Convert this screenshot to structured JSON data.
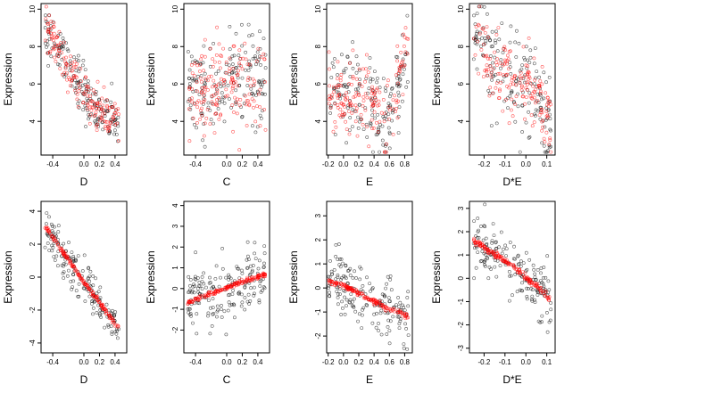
{
  "colors": {
    "black_points": "#000000",
    "red_points": "#ff0000"
  },
  "chart_data": [
    {
      "type": "scatter",
      "xlabel": "D",
      "ylabel": "Expression",
      "xlim": [
        -0.55,
        0.55
      ],
      "ylim": [
        2.2,
        10.3
      ],
      "xticks": [
        "-0.4",
        "0.0",
        "0.2",
        "0.4"
      ],
      "xtick_values": [
        -0.4,
        0.0,
        0.2,
        0.4
      ],
      "yticks": [
        "4",
        "6",
        "8",
        "10"
      ],
      "ytick_values": [
        4,
        6,
        8,
        10
      ],
      "series": [
        {
          "color": "#000000",
          "trend": [
            [
              -0.5,
              8.6
            ],
            [
              -0.3,
              7.8
            ],
            [
              -0.1,
              6.4
            ],
            [
              0.0,
              5.7
            ],
            [
              0.1,
              5.0
            ],
            [
              0.2,
              4.3
            ],
            [
              0.3,
              4.2
            ],
            [
              0.45,
              4.0
            ]
          ],
          "spread": 1.1
        },
        {
          "color": "#ff0000",
          "trend": [
            [
              -0.5,
              8.8
            ],
            [
              -0.3,
              7.6
            ],
            [
              -0.1,
              6.2
            ],
            [
              0.0,
              5.6
            ],
            [
              0.1,
              5.1
            ],
            [
              0.2,
              4.6
            ],
            [
              0.3,
              4.3
            ],
            [
              0.45,
              4.2
            ]
          ],
          "spread": 1.0
        }
      ]
    },
    {
      "type": "scatter",
      "xlabel": "C",
      "ylabel": "Expression",
      "xlim": [
        -0.55,
        0.55
      ],
      "ylim": [
        2.2,
        10.3
      ],
      "xticks": [
        "-0.4",
        "0.0",
        "0.2",
        "0.4"
      ],
      "xtick_values": [
        -0.4,
        0.0,
        0.2,
        0.4
      ],
      "yticks": [
        "4",
        "6",
        "8",
        "10"
      ],
      "ytick_values": [
        4,
        6,
        8,
        10
      ],
      "series": [
        {
          "color": "#000000",
          "trend": [
            [
              -0.5,
              5.5
            ],
            [
              0.0,
              6.0
            ],
            [
              0.5,
              6.3
            ]
          ],
          "spread": 2.2
        },
        {
          "color": "#ff0000",
          "trend": [
            [
              -0.5,
              5.3
            ],
            [
              0.0,
              5.9
            ],
            [
              0.5,
              6.1
            ]
          ],
          "spread": 2.0
        }
      ]
    },
    {
      "type": "scatter",
      "xlabel": "E",
      "ylabel": "Expression",
      "xlim": [
        -0.22,
        0.9
      ],
      "ylim": [
        2.2,
        10.3
      ],
      "xticks": [
        "-0.2",
        "0.0",
        "0.2",
        "0.4",
        "0.6",
        "0.8"
      ],
      "xtick_values": [
        -0.2,
        0.0,
        0.2,
        0.4,
        0.6,
        0.8
      ],
      "yticks": [
        "4",
        "6",
        "8",
        "10"
      ],
      "ytick_values": [
        4,
        6,
        8,
        10
      ],
      "series": [
        {
          "color": "#000000",
          "trend": [
            [
              -0.2,
              6.0
            ],
            [
              0.0,
              5.8
            ],
            [
              0.2,
              5.4
            ],
            [
              0.4,
              4.8
            ],
            [
              0.55,
              3.4
            ],
            [
              0.85,
              8.3
            ]
          ],
          "spread": 1.9
        },
        {
          "color": "#ff0000",
          "trend": [
            [
              -0.2,
              5.5
            ],
            [
              0.0,
              5.4
            ],
            [
              0.2,
              5.2
            ],
            [
              0.4,
              4.9
            ],
            [
              0.55,
              3.5
            ],
            [
              0.85,
              8.5
            ]
          ],
          "spread": 1.6
        }
      ]
    },
    {
      "type": "scatter",
      "xlabel": "D*E",
      "ylabel": "Expression",
      "xlim": [
        -0.27,
        0.14
      ],
      "ylim": [
        2.2,
        10.3
      ],
      "xticks": [
        "-0.2",
        "-0.1",
        "0.0",
        "0.1"
      ],
      "xtick_values": [
        -0.2,
        -0.1,
        0.0,
        0.1
      ],
      "yticks": [
        "4",
        "6",
        "8",
        "10"
      ],
      "ytick_values": [
        4,
        6,
        8,
        10
      ],
      "series": [
        {
          "color": "#000000",
          "trend": [
            [
              -0.25,
              8.5
            ],
            [
              -0.05,
              6.0
            ],
            [
              0.0,
              6.0
            ],
            [
              0.05,
              5.8
            ],
            [
              0.12,
              3.4
            ]
          ],
          "spread": 2.0
        },
        {
          "color": "#ff0000",
          "trend": [
            [
              -0.25,
              8.5
            ],
            [
              -0.05,
              5.8
            ],
            [
              0.0,
              5.8
            ],
            [
              0.05,
              5.6
            ],
            [
              0.12,
              3.6
            ]
          ],
          "spread": 1.6
        }
      ]
    },
    {
      "type": "scatter",
      "xlabel": "D",
      "ylabel": "Expression",
      "xlim": [
        -0.55,
        0.55
      ],
      "ylim": [
        -4.6,
        4.6
      ],
      "xticks": [
        "-0.4",
        "0.0",
        "0.2",
        "0.4"
      ],
      "xtick_values": [
        -0.4,
        0.0,
        0.2,
        0.4
      ],
      "yticks": [
        "-4",
        "-2",
        "0",
        "2",
        "4"
      ],
      "ytick_values": [
        -4,
        -2,
        0,
        2,
        4
      ],
      "series": [
        {
          "color": "#000000",
          "trend": [
            [
              -0.5,
              3.0
            ],
            [
              0.0,
              -0.3
            ],
            [
              0.45,
              -3.2
            ]
          ],
          "spread": 1.0
        },
        {
          "color": "#ff0000",
          "trend": [
            [
              -0.5,
              3.1
            ],
            [
              0.0,
              -0.3
            ],
            [
              0.48,
              -3.3
            ]
          ],
          "spread": 0.12
        }
      ]
    },
    {
      "type": "scatter",
      "xlabel": "C",
      "ylabel": "Expression",
      "xlim": [
        -0.55,
        0.55
      ],
      "ylim": [
        -3.1,
        4.2
      ],
      "xticks": [
        "-0.4",
        "0.0",
        "0.2",
        "0.4"
      ],
      "xtick_values": [
        -0.4,
        0.0,
        0.2,
        0.4
      ],
      "yticks": [
        "-2",
        "-1",
        "0",
        "1",
        "2",
        "3",
        "4"
      ],
      "ytick_values": [
        -2,
        -1,
        0,
        1,
        2,
        3,
        4
      ],
      "series": [
        {
          "color": "#000000",
          "trend": [
            [
              -0.5,
              -0.6
            ],
            [
              0.0,
              0.0
            ],
            [
              0.5,
              0.7
            ]
          ],
          "spread": 1.3
        },
        {
          "color": "#ff0000",
          "trend": [
            [
              -0.5,
              -0.7
            ],
            [
              0.0,
              0.05
            ],
            [
              0.5,
              0.7
            ]
          ],
          "spread": 0.08
        }
      ]
    },
    {
      "type": "scatter",
      "xlabel": "E",
      "ylabel": "Expression",
      "xlim": [
        -0.22,
        0.9
      ],
      "ylim": [
        -2.7,
        3.6
      ],
      "xticks": [
        "-0.2",
        "0.0",
        "0.2",
        "0.4",
        "0.6",
        "0.8"
      ],
      "xtick_values": [
        -0.2,
        0.0,
        0.2,
        0.4,
        0.6,
        0.8
      ],
      "yticks": [
        "-2",
        "-1",
        "0",
        "1",
        "2",
        "3"
      ],
      "ytick_values": [
        -2,
        -1,
        0,
        1,
        2,
        3
      ],
      "series": [
        {
          "color": "#000000",
          "trend": [
            [
              -0.2,
              0.3
            ],
            [
              0.0,
              0.1
            ],
            [
              0.3,
              -0.4
            ],
            [
              0.55,
              -0.8
            ],
            [
              0.85,
              -1.2
            ]
          ],
          "spread": 1.1
        },
        {
          "color": "#ff0000",
          "trend": [
            [
              -0.2,
              0.3
            ],
            [
              0.0,
              0.1
            ],
            [
              0.3,
              -0.4
            ],
            [
              0.55,
              -0.8
            ],
            [
              0.85,
              -1.2
            ]
          ],
          "spread": 0.08
        }
      ]
    },
    {
      "type": "scatter",
      "xlabel": "D*E",
      "ylabel": "Expression",
      "xlim": [
        -0.27,
        0.14
      ],
      "ylim": [
        -3.2,
        3.3
      ],
      "xticks": [
        "-0.2",
        "-0.1",
        "0.0",
        "0.1"
      ],
      "xtick_values": [
        -0.2,
        -0.1,
        0.0,
        0.1
      ],
      "yticks": [
        "-3",
        "-2",
        "-1",
        "0",
        "1",
        "2",
        "3"
      ],
      "ytick_values": [
        -3,
        -2,
        -1,
        0,
        1,
        2,
        3
      ],
      "series": [
        {
          "color": "#000000",
          "trend": [
            [
              -0.25,
              1.6
            ],
            [
              -0.05,
              0.4
            ],
            [
              0.0,
              0.0
            ],
            [
              0.05,
              -0.3
            ],
            [
              0.12,
              -0.9
            ]
          ],
          "spread": 1.1
        },
        {
          "color": "#ff0000",
          "trend": [
            [
              -0.25,
              1.6
            ],
            [
              -0.05,
              0.45
            ],
            [
              0.0,
              0.05
            ],
            [
              0.05,
              -0.35
            ],
            [
              0.12,
              -0.9
            ]
          ],
          "spread": 0.1
        }
      ]
    }
  ]
}
